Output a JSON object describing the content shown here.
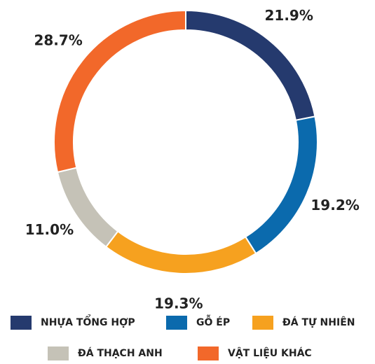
{
  "chart_data": {
    "type": "donut",
    "categories": [
      "NHỰA TỔNG HỢP",
      "GỖ ÉP",
      "ĐÁ TỰ NHIÊN",
      "ĐÁ THẠCH ANH",
      "VẬT LIỆU KHÁC"
    ],
    "values": [
      21.9,
      19.2,
      19.3,
      11.0,
      28.7
    ],
    "value_labels": [
      "21.9%",
      "19.2%",
      "19.3%",
      "11.0%",
      "28.7%"
    ],
    "colors": [
      "#253a6e",
      "#0b6aad",
      "#f6a11f",
      "#c5c2b7",
      "#f2682a"
    ]
  }
}
